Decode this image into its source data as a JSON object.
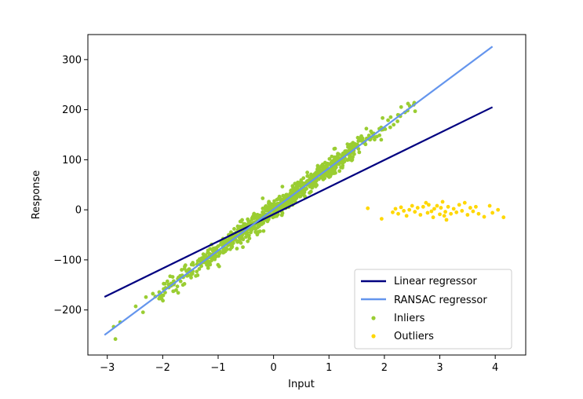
{
  "chart_data": {
    "type": "scatter",
    "title": "",
    "xlabel": "Input",
    "ylabel": "Response",
    "xlim": [
      -3.35,
      4.55
    ],
    "ylim": [
      -290,
      350
    ],
    "x_ticks": [
      -3,
      -2,
      -1,
      0,
      1,
      2,
      3,
      4
    ],
    "y_ticks": [
      -200,
      -100,
      0,
      100,
      200,
      300
    ],
    "x_tick_labels": [
      "−3",
      "−2",
      "−1",
      "0",
      "1",
      "2",
      "3",
      "4"
    ],
    "y_tick_labels": [
      "−200",
      "−100",
      "0",
      "100",
      "200",
      "300"
    ],
    "grid": false,
    "legend_position": "lower-right",
    "series": [
      {
        "name": "Linear regressor",
        "kind": "line",
        "color": "#000080",
        "x": [
          -3.05,
          3.95
        ],
        "y": [
          -174,
          205
        ]
      },
      {
        "name": "RANSAC regressor",
        "kind": "line",
        "color": "#6495ED",
        "x": [
          -3.05,
          3.95
        ],
        "y": [
          -250,
          326
        ]
      },
      {
        "name": "Inliers",
        "kind": "scatter",
        "color": "#9ACD32",
        "trend": {
          "slope": 82.3,
          "intercept": 1
        },
        "x_range": [
          -3.05,
          2.6
        ],
        "noise": 10,
        "count": 900
      },
      {
        "name": "Outliers",
        "kind": "scatter",
        "color": "#FFD700",
        "x": [
          1.7,
          1.95,
          2.15,
          2.2,
          2.25,
          2.3,
          2.35,
          2.4,
          2.45,
          2.5,
          2.55,
          2.6,
          2.65,
          2.7,
          2.75,
          2.78,
          2.8,
          2.85,
          2.88,
          2.9,
          2.95,
          3.0,
          3.02,
          3.05,
          3.08,
          3.1,
          3.12,
          3.15,
          3.2,
          3.25,
          3.3,
          3.35,
          3.4,
          3.45,
          3.5,
          3.55,
          3.6,
          3.65,
          3.7,
          3.8,
          3.9,
          3.95,
          4.05,
          4.15
        ],
        "y": [
          3,
          -18,
          -5,
          2,
          -8,
          5,
          -2,
          -12,
          0,
          8,
          -4,
          4,
          -10,
          6,
          14,
          -6,
          10,
          -3,
          -15,
          2,
          8,
          -9,
          4,
          16,
          -12,
          -4,
          -20,
          6,
          -8,
          2,
          -5,
          10,
          -2,
          14,
          -10,
          4,
          -3,
          6,
          -8,
          -14,
          8,
          -6,
          0,
          -15
        ]
      }
    ]
  }
}
